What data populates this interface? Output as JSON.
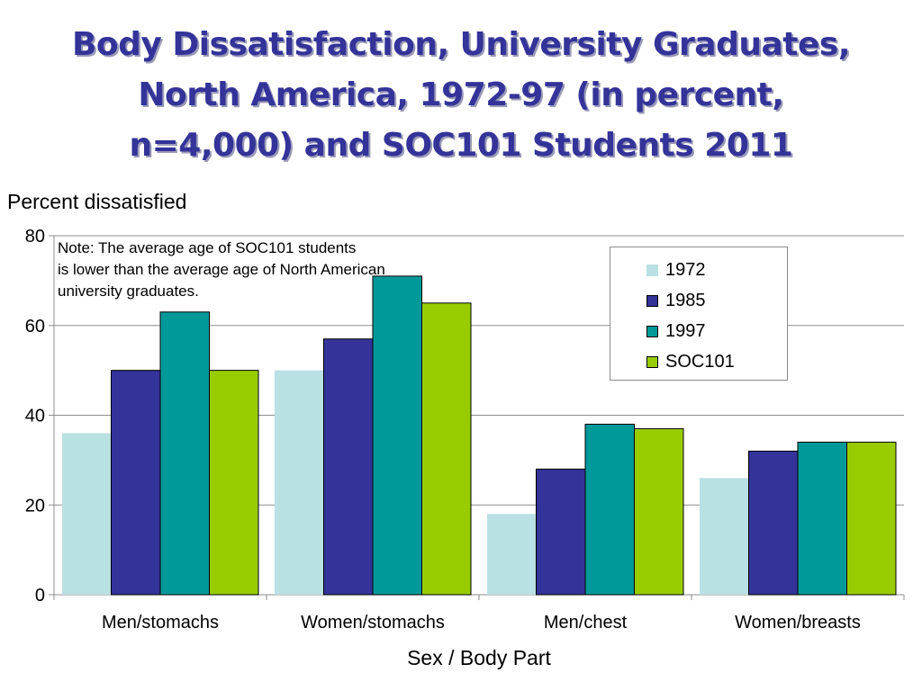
{
  "title": {
    "line1": "Body Dissatisfaction, University Graduates,",
    "line2": "North America, 1972-97 (in percent,",
    "line3": "n=4,000) and SOC101 Students 2011"
  },
  "note": {
    "line1": "Note: The average age of SOC101 students",
    "line2": "is lower than the average age of North American",
    "line3": "university graduates."
  },
  "chart_data": {
    "type": "bar",
    "ylabel": "Percent dissatisfied",
    "xlabel": "Sex / Body Part",
    "ylim": [
      0,
      80
    ],
    "yticks": [
      0,
      20,
      40,
      60,
      80
    ],
    "grid": true,
    "legend_position": "top-right",
    "categories": [
      "Men/stomachs",
      "Women/stomachs",
      "Men/chest",
      "Women/breasts"
    ],
    "series": [
      {
        "name": "1972",
        "color": "#b9e0e3",
        "values": [
          36,
          50,
          18,
          26
        ]
      },
      {
        "name": "1985",
        "color": "#333399",
        "values": [
          50,
          57,
          28,
          32
        ]
      },
      {
        "name": "1997",
        "color": "#009999",
        "values": [
          63,
          71,
          38,
          34
        ]
      },
      {
        "name": "SOC101",
        "color": "#99cc00",
        "values": [
          50,
          65,
          37,
          34
        ]
      }
    ]
  }
}
